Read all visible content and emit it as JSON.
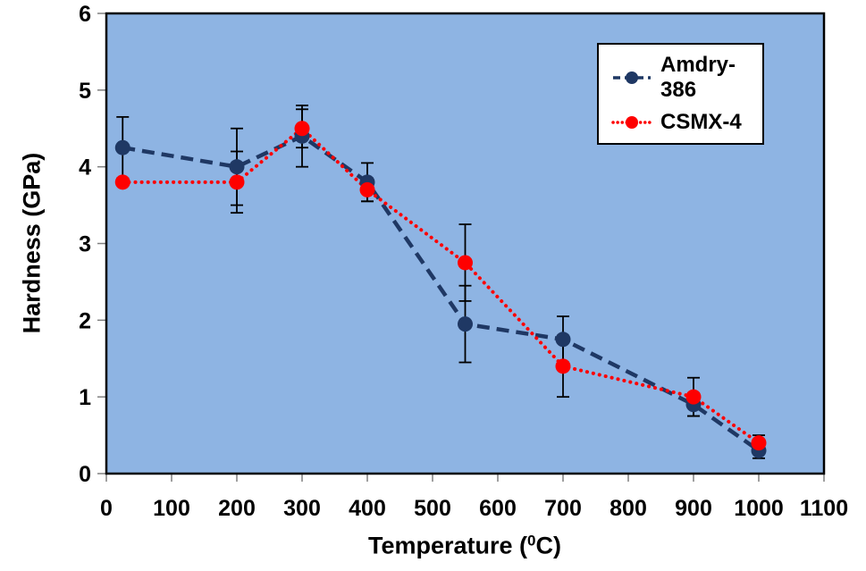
{
  "chart_data": {
    "type": "line",
    "title": "",
    "xlabel_prefix": "Temperature (",
    "xlabel_sup": "0",
    "xlabel_suffix": "C)",
    "ylabel": "Hardness (GPa)",
    "xlim": [
      0,
      1100
    ],
    "ylim": [
      0,
      6
    ],
    "x_ticks": [
      0,
      100,
      200,
      300,
      400,
      500,
      600,
      700,
      800,
      900,
      1000,
      1100
    ],
    "y_ticks": [
      0,
      1,
      2,
      3,
      4,
      5,
      6
    ],
    "grid": false,
    "legend_position": "top-right",
    "plot_background": "#8EB4E3",
    "frame_color": "#000000",
    "tick_color": "#808080",
    "error_bar_color": "#000000",
    "x": [
      25,
      200,
      300,
      400,
      550,
      700,
      900,
      1000
    ],
    "series": [
      {
        "name": "Amdry-386",
        "color": "#1F3864",
        "line_style": "dashed",
        "values": [
          4.25,
          4.0,
          4.4,
          3.8,
          1.95,
          1.75,
          0.9,
          0.3
        ],
        "errors": [
          0.4,
          0.5,
          0.4,
          0.25,
          0.5,
          0.3,
          0.15,
          0.1
        ]
      },
      {
        "name": "CSMX-4",
        "color": "#FE0000",
        "line_style": "dotted",
        "values": [
          3.8,
          3.8,
          4.5,
          3.7,
          2.75,
          1.4,
          1.0,
          0.4
        ],
        "errors": [
          0,
          0.4,
          0.25,
          0.15,
          0.5,
          0.4,
          0.25,
          0.1
        ]
      }
    ]
  }
}
